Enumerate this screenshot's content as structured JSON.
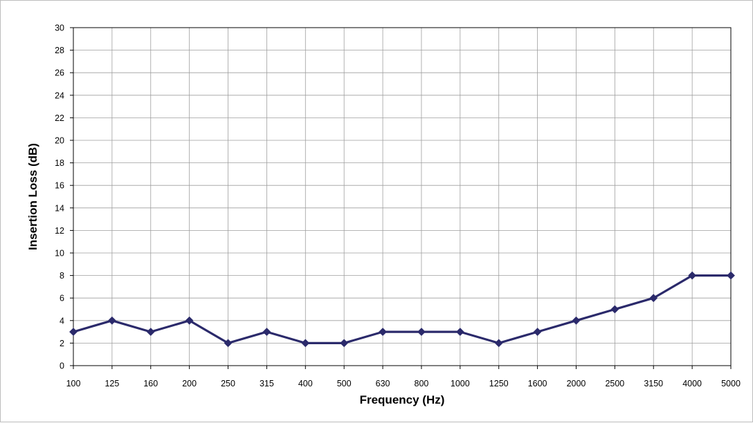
{
  "chart_data": {
    "type": "line",
    "title": "",
    "xlabel": "Frequency (Hz)",
    "ylabel": "Insertion Loss (dB)",
    "categories": [
      "100",
      "125",
      "160",
      "200",
      "250",
      "315",
      "400",
      "500",
      "630",
      "800",
      "1000",
      "1250",
      "1600",
      "2000",
      "2500",
      "3150",
      "4000",
      "5000"
    ],
    "series": [
      {
        "values": [
          3,
          4,
          3,
          4,
          2,
          3,
          2,
          2,
          3,
          3,
          3,
          2,
          3,
          4,
          5,
          6,
          8,
          8
        ]
      }
    ],
    "ylim": [
      0,
      30
    ],
    "yticks": [
      0,
      2,
      4,
      6,
      8,
      10,
      12,
      14,
      16,
      18,
      20,
      22,
      24,
      26,
      28,
      30
    ],
    "grid": true,
    "legend": "none",
    "colors": {
      "line": "#2b2a6b",
      "marker": "#2b2a6b",
      "grid": "#9e9e9e",
      "axis": "#000000"
    }
  }
}
